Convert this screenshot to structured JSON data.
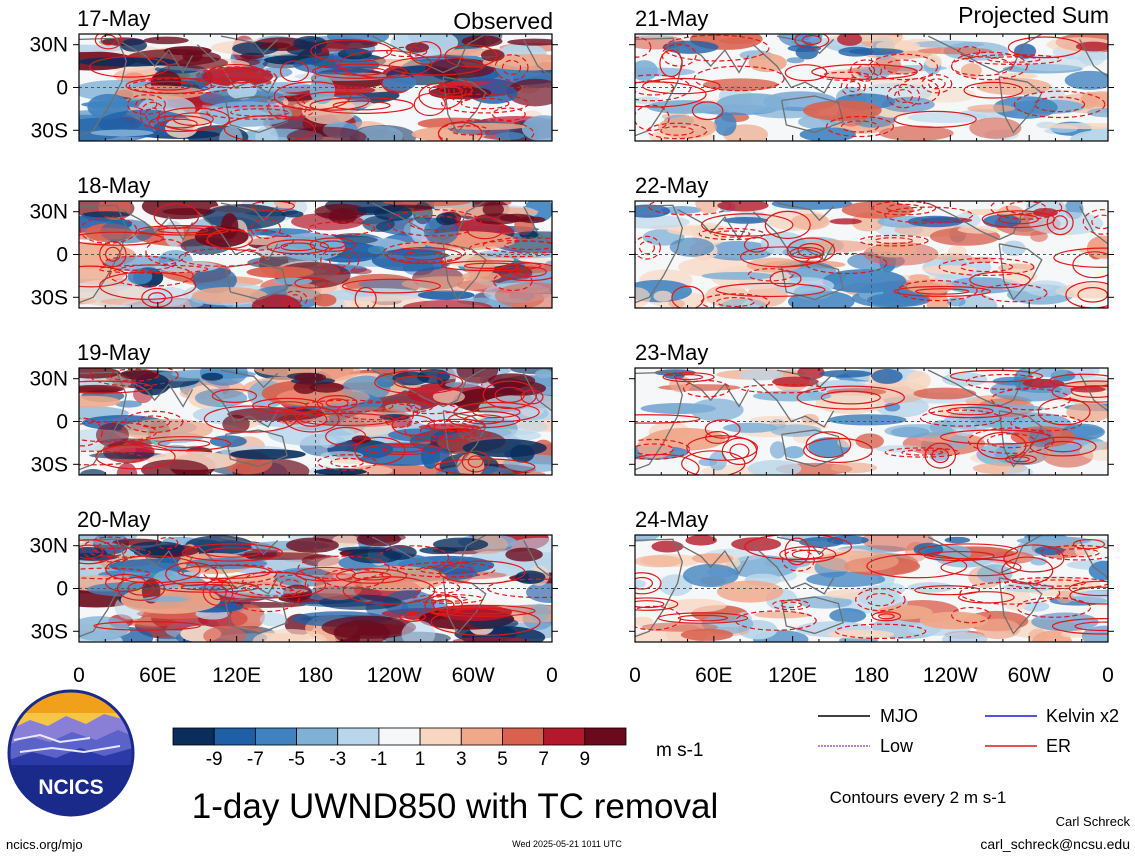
{
  "panels_left": {
    "header_right": "Observed",
    "dates": [
      "17-May",
      "18-May",
      "19-May",
      "20-May"
    ]
  },
  "panels_right": {
    "header_right": "Projected Sum",
    "dates": [
      "21-May",
      "22-May",
      "23-May",
      "24-May"
    ]
  },
  "axes": {
    "lat_ticks": [
      "30N",
      "0",
      "30S"
    ],
    "lon_ticks": [
      "0",
      "60E",
      "120E",
      "180",
      "120W",
      "60W",
      "0"
    ]
  },
  "colorbar": {
    "labels": [
      "-9",
      "-7",
      "-5",
      "-3",
      "-1",
      "1",
      "3",
      "5",
      "7",
      "9"
    ],
    "units": "m s-1",
    "colors": [
      "#0a2d5c",
      "#1f5fa6",
      "#3f82bf",
      "#7fb0d6",
      "#b9d6ea",
      "#f5f7f9",
      "#f8d7c2",
      "#efa88a",
      "#d9624f",
      "#b3192b",
      "#6b0a1c"
    ]
  },
  "legend": {
    "items": [
      {
        "label": "MJO",
        "color": "#000000"
      },
      {
        "label": "Kelvin x2",
        "color": "#1b1bd6"
      },
      {
        "label": "Low",
        "color": "#9b59d6"
      },
      {
        "label": "ER",
        "color": "#e01818"
      }
    ],
    "contour_note": "Contours every 2 m s-1"
  },
  "title": "1-day UWND850 with TC removal",
  "logo": {
    "text": "NCICS"
  },
  "footer": {
    "url": "ncics.org/mjo",
    "timestamp": "Wed 2025-05-21 1011 UTC",
    "author": "Carl Schreck",
    "email": "carl_schreck@ncsu.edu"
  }
}
